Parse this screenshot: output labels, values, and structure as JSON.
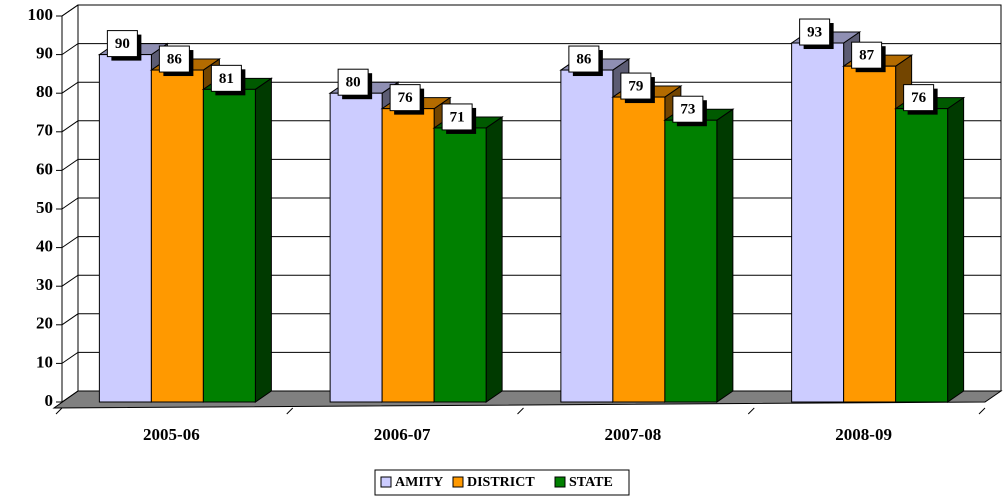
{
  "chart_data": {
    "type": "bar3d",
    "categories": [
      "2005-06",
      "2006-07",
      "2007-08",
      "2008-09"
    ],
    "series": [
      {
        "name": "AMITY",
        "color": "#ccccff",
        "values": [
          90,
          80,
          86,
          93
        ]
      },
      {
        "name": "DISTRICT",
        "color": "#ff9900",
        "values": [
          86,
          76,
          79,
          87
        ]
      },
      {
        "name": "STATE",
        "color": "#008000",
        "values": [
          81,
          71,
          73,
          76
        ]
      }
    ],
    "ylim": [
      0,
      100
    ],
    "yticks": [
      0,
      10,
      20,
      30,
      40,
      50,
      60,
      70,
      80,
      90,
      100
    ],
    "grid": true,
    "legend": "bottom"
  }
}
